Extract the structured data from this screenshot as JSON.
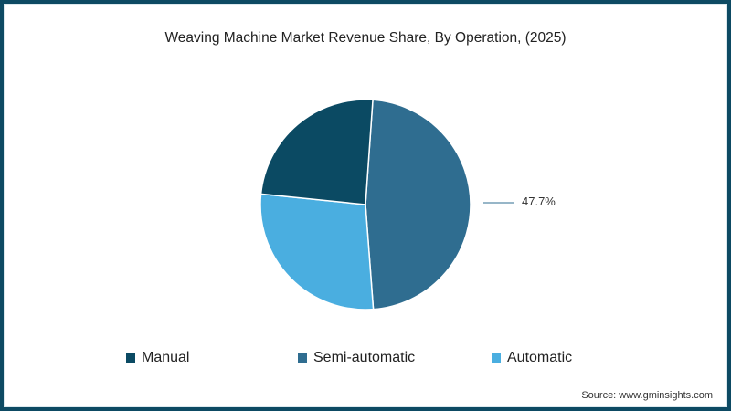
{
  "chart_data": {
    "type": "pie",
    "title": "Weaving Machine Market Revenue Share, By Operation, (2025)",
    "categories": [
      "Manual",
      "Semi-automatic",
      "Automatic"
    ],
    "values": [
      24.5,
      47.7,
      27.8
    ],
    "colors": [
      "#0b4a63",
      "#2f6d90",
      "#4aaee0"
    ],
    "annotations": [
      {
        "category": "Semi-automatic",
        "text": "47.7%"
      }
    ],
    "legend_position": "bottom"
  },
  "title": "Weaving Machine Market Revenue Share, By Operation, (2025)",
  "slice_label": "47.7%",
  "legend": [
    {
      "label": "Manual",
      "color": "#0b4a63"
    },
    {
      "label": "Semi-automatic",
      "color": "#2f6d90"
    },
    {
      "label": "Automatic",
      "color": "#4aaee0"
    }
  ],
  "source": "Source: www.gminsights.com"
}
